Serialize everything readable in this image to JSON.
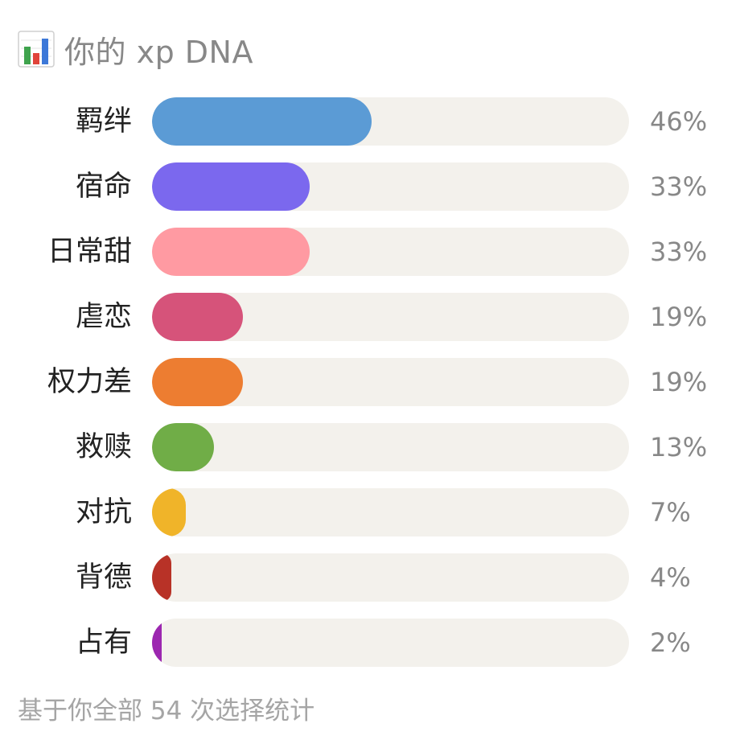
{
  "header": {
    "icon": "bar-chart-icon",
    "title": "你的 xp DNA"
  },
  "chart_data": {
    "type": "bar",
    "orientation": "horizontal",
    "categories": [
      "羁绊",
      "宿命",
      "日常甜",
      "虐恋",
      "权力差",
      "救赎",
      "对抗",
      "背德",
      "占有"
    ],
    "values": [
      46,
      33,
      33,
      19,
      19,
      13,
      7,
      4,
      2
    ],
    "value_labels": [
      "46%",
      "33%",
      "33%",
      "19%",
      "19%",
      "13%",
      "7%",
      "4%",
      "2%"
    ],
    "colors": [
      "#5b9bd5",
      "#7b68ee",
      "#ff9aa2",
      "#d6537a",
      "#ed7d31",
      "#70ad47",
      "#f0b429",
      "#b83227",
      "#9c27b0"
    ],
    "track_color": "#f3f1ec",
    "xlim": [
      0,
      100
    ],
    "grid": false,
    "title": "你的 xp DNA"
  },
  "footer": {
    "note": "基于你全部 54 次选择统计"
  }
}
